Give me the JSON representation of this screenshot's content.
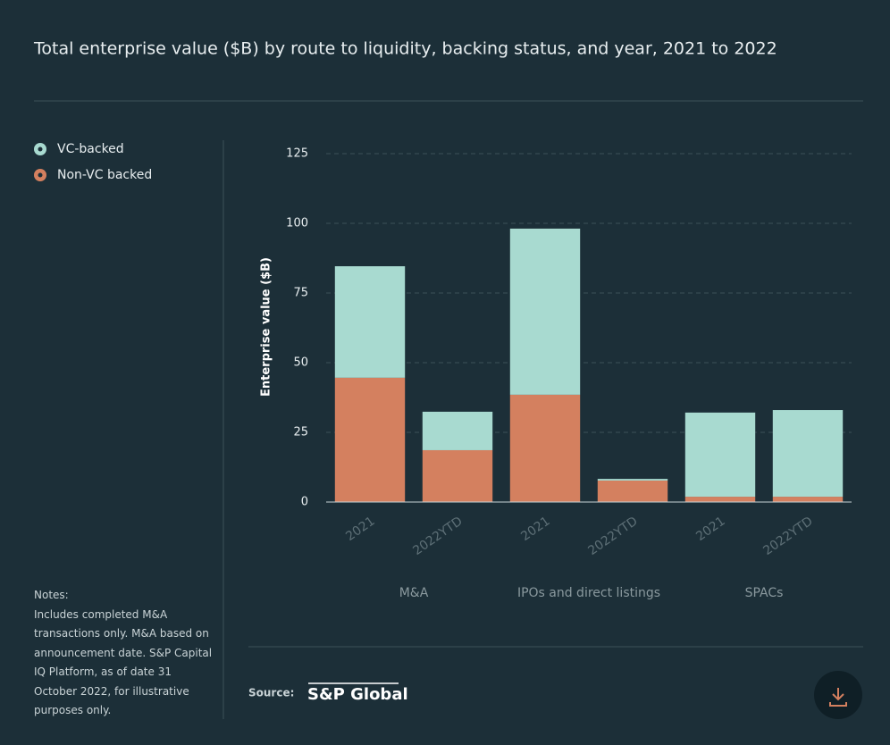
{
  "chart_data": {
    "type": "stacked-bar",
    "title": "Total enterprise value ($B) by route to liquidity, backing status, and year, 2021 to 2022",
    "y_label": "Enterprise value ($B)",
    "categories": [
      "2021",
      "2022YTD",
      "2021",
      "2022YTD",
      "2021",
      "2022YTD"
    ],
    "groups": [
      "M&A",
      "IPOs and direct listings",
      "SPACs"
    ],
    "series": [
      {
        "name": "VC-backed",
        "color": "#a8dad0",
        "values": [
          40,
          13.8,
          59.6,
          0.6,
          30.2,
          31.1
        ]
      },
      {
        "name": "Non-VC backed",
        "color": "#d4805f",
        "values": [
          44.6,
          18.6,
          38.5,
          7.7,
          1.9,
          1.9
        ]
      }
    ],
    "ylim": [
      0,
      125
    ],
    "yticks": [
      0,
      25,
      50,
      75,
      100,
      125
    ],
    "grid": true,
    "legend": "top-left"
  },
  "notes": {
    "heading": "Notes:",
    "text": "Includes completed M&A transactions only. M&A based on announcement date. S&P Capital IQ Platform, as of date 31 October 2022, for illustrative purposes only."
  },
  "source": {
    "label": "Source:",
    "logo": "S&P Global"
  }
}
